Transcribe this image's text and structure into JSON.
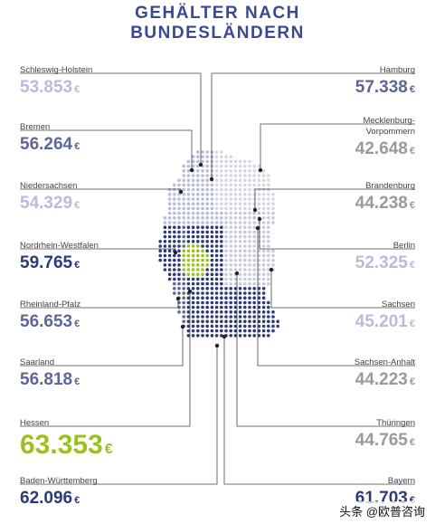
{
  "title": [
    "GEHÄLTER NACH",
    "BUNDESLÄNDERN"
  ],
  "currency": "€",
  "colors": {
    "title": "#3b4a8f",
    "dark": "#2c3a7a",
    "mid": "#5d6699",
    "light": "#b7bdd8",
    "grey": "#9a9a9a",
    "green": "#9cc11d",
    "line": "#444444"
  },
  "chart_data": {
    "type": "table",
    "title": "GEHÄLTER NACH BUNDESLÄNDERN",
    "categories": [
      "Schleswig-Holstein",
      "Bremen",
      "Niedersachsen",
      "Nordrhein-Westfalen",
      "Rheinland-Pfalz",
      "Saarland",
      "Hessen",
      "Baden-Württemberg",
      "Hamburg",
      "Mecklenburg-Vorpommern",
      "Brandenburg",
      "Berlin",
      "Sachsen",
      "Sachsen-Anhalt",
      "Thüringen",
      "Bayern"
    ],
    "values": [
      53853,
      56264,
      54329,
      59765,
      56653,
      56818,
      63353,
      62096,
      57338,
      42648,
      44238,
      52325,
      45201,
      44223,
      44765,
      61703
    ],
    "left": [
      {
        "name": "Schleswig-Holstein",
        "value": "53.853",
        "color": "light"
      },
      {
        "name": "Bremen",
        "value": "56.264",
        "color": "mid"
      },
      {
        "name": "Niedersachsen",
        "value": "54.329",
        "color": "light"
      },
      {
        "name": "Nordrhein-Westfalen",
        "value": "59.765",
        "color": "dark"
      },
      {
        "name": "Rheinland-Pfalz",
        "value": "56.653",
        "color": "mid"
      },
      {
        "name": "Saarland",
        "value": "56.818",
        "color": "mid"
      },
      {
        "name": "Hessen",
        "value": "63.353",
        "color": "green"
      },
      {
        "name": "Baden-Württemberg",
        "value": "62.096",
        "color": "dark"
      }
    ],
    "right": [
      {
        "name": "Hamburg",
        "value": "57.338",
        "color": "mid"
      },
      {
        "name": "Mecklenburg-\nVorpommern",
        "value": "42.648",
        "color": "grey"
      },
      {
        "name": "Brandenburg",
        "value": "44.238",
        "color": "grey"
      },
      {
        "name": "Berlin",
        "value": "52.325",
        "color": "light"
      },
      {
        "name": "Sachsen",
        "value": "45.201",
        "color": "light"
      },
      {
        "name": "Sachsen-Anhalt",
        "value": "44.223",
        "color": "grey"
      },
      {
        "name": "Thüringen",
        "value": "44.765",
        "color": "grey"
      },
      {
        "name": "Bayern",
        "value": "61.703",
        "color": "dark"
      }
    ]
  },
  "watermark": "头条 @欧普咨询"
}
